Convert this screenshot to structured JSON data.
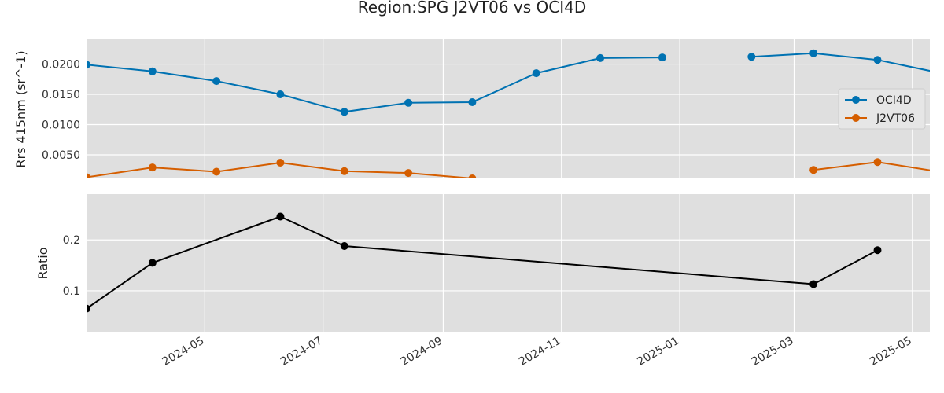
{
  "title": "Region:SPG J2VT06 vs OCI4D",
  "chart_data": [
    {
      "type": "line",
      "ylabel": "Rrs 415nm (sr^-1)",
      "xlim": [
        "2024-03-01",
        "2025-05-10"
      ],
      "ylim": [
        0.0011,
        0.0241
      ],
      "yticks": [
        0.005,
        0.01,
        0.015,
        0.02
      ],
      "ytick_labels": [
        "0.0050",
        "0.0100",
        "0.0150",
        "0.0200"
      ],
      "grid": true,
      "legend": {
        "placement": "center-right",
        "entries": [
          "OCI4D",
          "J2VT06"
        ]
      },
      "series": [
        {
          "name": "OCI4D",
          "color": "#0072b2",
          "points": [
            [
              "2024-03-01",
              0.0199
            ],
            [
              "2024-04-04",
              0.0188
            ],
            [
              "2024-05-07",
              0.0172
            ],
            [
              "2024-06-09",
              0.015
            ],
            [
              "2024-07-12",
              0.0121
            ],
            [
              "2024-08-14",
              0.0136
            ],
            [
              "2024-09-16",
              0.0137
            ],
            [
              "2024-10-19",
              0.0185
            ],
            [
              "2024-11-21",
              0.021
            ],
            [
              "2024-12-23",
              0.0211
            ],
            null,
            [
              "2025-02-07",
              0.0212
            ],
            [
              "2025-03-11",
              0.0218
            ],
            [
              "2025-04-13",
              0.0207
            ],
            [
              "2025-05-13",
              0.0187
            ]
          ]
        },
        {
          "name": "J2VT06",
          "color": "#d55e00",
          "points": [
            [
              "2024-03-01",
              0.0013
            ],
            [
              "2024-04-04",
              0.0029
            ],
            [
              "2024-05-07",
              0.0022
            ],
            [
              "2024-06-09",
              0.0037
            ],
            [
              "2024-07-12",
              0.0023
            ],
            [
              "2024-08-14",
              0.002
            ],
            [
              "2024-09-16",
              0.0011
            ],
            null,
            [
              "2025-03-11",
              0.0025
            ],
            [
              "2025-04-13",
              0.0038
            ],
            [
              "2025-05-13",
              0.0023
            ]
          ]
        }
      ]
    },
    {
      "type": "line",
      "ylabel": "Ratio",
      "xlim": [
        "2024-03-01",
        "2025-05-10"
      ],
      "ylim": [
        0.018,
        0.29
      ],
      "yticks": [
        0.1,
        0.2
      ],
      "ytick_labels": [
        "0.1",
        "0.2"
      ],
      "grid": true,
      "series": [
        {
          "color": "#000000",
          "points": [
            [
              "2024-03-01",
              0.065
            ],
            [
              "2024-04-04",
              0.155
            ],
            [
              "2024-06-09",
              0.246
            ],
            [
              "2024-07-12",
              0.188
            ],
            [
              "2025-03-11",
              0.113
            ],
            [
              "2025-04-13",
              0.18
            ]
          ]
        }
      ]
    }
  ],
  "xaxis": {
    "ticks": [
      "2024-05-01",
      "2024-07-01",
      "2024-09-01",
      "2024-11-01",
      "2025-01-01",
      "2025-03-01",
      "2025-05-01"
    ],
    "tick_labels": [
      "2024-05",
      "2024-07",
      "2024-09",
      "2024-11",
      "2025-01",
      "2025-03",
      "2025-05"
    ]
  }
}
